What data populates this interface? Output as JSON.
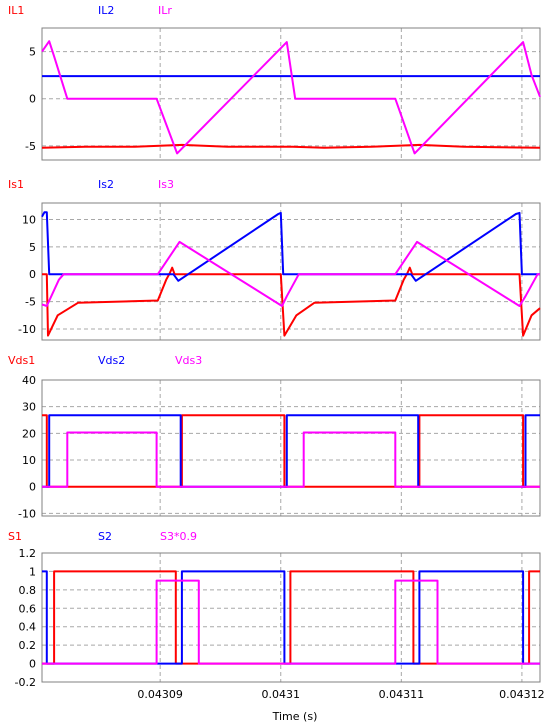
{
  "xaxis": {
    "label": "Time (s)",
    "range": [
      0.0430802,
      0.0431215
    ],
    "ticks": [
      0.04309,
      0.0431,
      0.04311,
      0.04312
    ],
    "tick_labels": [
      "0.04309",
      "0.0431",
      "0.04311",
      "0.04312"
    ]
  },
  "chart_data": [
    {
      "type": "line",
      "ylim": [
        -6.5,
        7.5
      ],
      "yticks": [
        -5,
        0,
        5
      ],
      "ytick_labels": [
        "-5",
        "0",
        "5"
      ],
      "grid": true,
      "legend_position": "top-left",
      "series": [
        {
          "name": "IL1",
          "color": "#ff0000",
          "points": [
            [
              0.0430802,
              -5.2
            ],
            [
              0.0430838,
              -5.1
            ],
            [
              0.0430879,
              -5.1
            ],
            [
              0.0430918,
              -4.9
            ],
            [
              0.0430956,
              -5.1
            ],
            [
              0.043101,
              -5.1
            ],
            [
              0.0431036,
              -5.2
            ],
            [
              0.0431075,
              -5.1
            ],
            [
              0.0431115,
              -4.9
            ],
            [
              0.0431152,
              -5.1
            ],
            [
              0.0431215,
              -5.2
            ]
          ]
        },
        {
          "name": "IL2",
          "color": "#0000ff",
          "points": [
            [
              0.0430802,
              2.4
            ],
            [
              0.0431215,
              2.4
            ]
          ]
        },
        {
          "name": "ILr",
          "color": "#ff00ff",
          "points": [
            [
              0.0430802,
              5.0
            ],
            [
              0.0430808,
              6.1
            ],
            [
              0.0430812,
              4.5
            ],
            [
              0.0430823,
              0
            ],
            [
              0.0430897,
              0
            ],
            [
              0.0430914,
              -5.8
            ],
            [
              0.0431005,
              6.0
            ],
            [
              0.0431012,
              0
            ],
            [
              0.0431095,
              0
            ],
            [
              0.0431111,
              -5.8
            ],
            [
              0.0431201,
              6.0
            ],
            [
              0.0431208,
              2.5
            ],
            [
              0.0431215,
              0.2
            ]
          ]
        }
      ]
    },
    {
      "type": "line",
      "ylim": [
        -12,
        13
      ],
      "yticks": [
        -10,
        -5,
        0,
        5,
        10
      ],
      "ytick_labels": [
        "-10",
        "-5",
        "0",
        "5",
        "10"
      ],
      "grid": true,
      "legend_position": "top-left",
      "series": [
        {
          "name": "Is1",
          "color": "#ff0000",
          "points": [
            [
              0.0430802,
              0
            ],
            [
              0.0430806,
              0
            ],
            [
              0.0430807,
              -11.2
            ],
            [
              0.0430815,
              -7.5
            ],
            [
              0.0430832,
              -5.2
            ],
            [
              0.0430898,
              -4.8
            ],
            [
              0.0430905,
              -1.0
            ],
            [
              0.0430908,
              0.2
            ],
            [
              0.043091,
              1.2
            ],
            [
              0.0430912,
              0
            ],
            [
              0.0431,
              0
            ],
            [
              0.0431003,
              -11.2
            ],
            [
              0.0431013,
              -7.5
            ],
            [
              0.0431028,
              -5.2
            ],
            [
              0.0431095,
              -4.8
            ],
            [
              0.0431102,
              -1.0
            ],
            [
              0.0431105,
              0.2
            ],
            [
              0.0431107,
              1.2
            ],
            [
              0.0431109,
              0
            ],
            [
              0.0431198,
              0
            ],
            [
              0.0431201,
              -11.2
            ],
            [
              0.0431208,
              -7.5
            ],
            [
              0.0431215,
              -6.2
            ]
          ]
        },
        {
          "name": "Is2",
          "color": "#0000ff",
          "points": [
            [
              0.0430802,
              10.5
            ],
            [
              0.0430804,
              11.3
            ],
            [
              0.0430806,
              11.3
            ],
            [
              0.0430808,
              0
            ],
            [
              0.0430911,
              0
            ],
            [
              0.0430915,
              -1.2
            ],
            [
              0.0430998,
              11.0
            ],
            [
              0.0431,
              11.2
            ],
            [
              0.0431002,
              0
            ],
            [
              0.0431108,
              0
            ],
            [
              0.0431112,
              -1.2
            ],
            [
              0.0431195,
              11.0
            ],
            [
              0.0431198,
              11.2
            ],
            [
              0.04312,
              0
            ],
            [
              0.0431215,
              0
            ]
          ]
        },
        {
          "name": "Is3",
          "color": "#ff00ff",
          "points": [
            [
              0.0430802,
              -5.5
            ],
            [
              0.0430806,
              -5.8
            ],
            [
              0.0430816,
              -1.0
            ],
            [
              0.043082,
              0
            ],
            [
              0.0430898,
              0
            ],
            [
              0.0430916,
              5.9
            ],
            [
              0.0431001,
              -5.8
            ],
            [
              0.0431005,
              -4.0
            ],
            [
              0.0431015,
              0
            ],
            [
              0.0431095,
              0
            ],
            [
              0.0431113,
              5.9
            ],
            [
              0.0431198,
              -5.8
            ],
            [
              0.0431203,
              -4.0
            ],
            [
              0.0431213,
              0
            ],
            [
              0.0431215,
              0
            ]
          ]
        }
      ]
    },
    {
      "type": "line",
      "ylim": [
        -11,
        40
      ],
      "yticks": [
        -10,
        0,
        10,
        20,
        30,
        40
      ],
      "ytick_labels": [
        "-10",
        "0",
        "10",
        "20",
        "30",
        "40"
      ],
      "grid": true,
      "legend_position": "top-left",
      "series": [
        {
          "name": "Vds1",
          "color": "#ff0000",
          "points": [
            [
              0.0430802,
              26.8
            ],
            [
              0.0430806,
              26.8
            ],
            [
              0.0430806,
              0
            ],
            [
              0.0430918,
              0
            ],
            [
              0.0430918,
              26.8
            ],
            [
              0.0431003,
              26.8
            ],
            [
              0.0431003,
              0
            ],
            [
              0.0431115,
              0
            ],
            [
              0.0431115,
              26.8
            ],
            [
              0.0431201,
              26.8
            ],
            [
              0.0431201,
              0
            ],
            [
              0.0431215,
              0
            ]
          ]
        },
        {
          "name": "Vds2",
          "color": "#0000ff",
          "points": [
            [
              0.0430802,
              0
            ],
            [
              0.0430808,
              0
            ],
            [
              0.0430808,
              26.8
            ],
            [
              0.0430917,
              26.8
            ],
            [
              0.0430917,
              0
            ],
            [
              0.0431005,
              0
            ],
            [
              0.0431005,
              26.8
            ],
            [
              0.0431114,
              26.8
            ],
            [
              0.0431114,
              0
            ],
            [
              0.0431203,
              0
            ],
            [
              0.0431203,
              26.8
            ],
            [
              0.0431215,
              26.8
            ]
          ]
        },
        {
          "name": "Vds3",
          "color": "#ff00ff",
          "points": [
            [
              0.0430802,
              0
            ],
            [
              0.0430823,
              0
            ],
            [
              0.0430823,
              20.3
            ],
            [
              0.0430897,
              20.3
            ],
            [
              0.0430897,
              0
            ],
            [
              0.0431019,
              0
            ],
            [
              0.0431019,
              20.3
            ],
            [
              0.0431095,
              20.3
            ],
            [
              0.0431095,
              0
            ],
            [
              0.0431215,
              0
            ]
          ]
        }
      ]
    },
    {
      "type": "line",
      "ylim": [
        -0.2,
        1.2
      ],
      "yticks": [
        -0.2,
        0,
        0.2,
        0.4,
        0.6,
        0.8,
        1,
        1.2
      ],
      "ytick_labels": [
        "-0.2",
        "0",
        "0.2",
        "0.4",
        "0.6",
        "0.8",
        "1",
        "1.2"
      ],
      "grid": true,
      "legend_position": "top-left",
      "series": [
        {
          "name": "S1",
          "color": "#ff0000",
          "points": [
            [
              0.0430802,
              0
            ],
            [
              0.0430812,
              0
            ],
            [
              0.0430812,
              1
            ],
            [
              0.0430913,
              1
            ],
            [
              0.0430913,
              0
            ],
            [
              0.0431008,
              0
            ],
            [
              0.0431008,
              1
            ],
            [
              0.043111,
              1
            ],
            [
              0.043111,
              0
            ],
            [
              0.0431206,
              0
            ],
            [
              0.0431206,
              1
            ],
            [
              0.0431215,
              1
            ]
          ]
        },
        {
          "name": "S2",
          "color": "#0000ff",
          "points": [
            [
              0.0430802,
              1
            ],
            [
              0.0430806,
              1
            ],
            [
              0.0430806,
              0
            ],
            [
              0.0430918,
              0
            ],
            [
              0.0430918,
              1
            ],
            [
              0.0431003,
              1
            ],
            [
              0.0431003,
              0
            ],
            [
              0.0431115,
              0
            ],
            [
              0.0431115,
              1
            ],
            [
              0.0431201,
              1
            ],
            [
              0.0431201,
              0
            ],
            [
              0.0431215,
              0
            ]
          ]
        },
        {
          "name": "S3*0.9",
          "color": "#ff00ff",
          "points": [
            [
              0.0430802,
              0
            ],
            [
              0.0430897,
              0
            ],
            [
              0.0430897,
              0.9
            ],
            [
              0.0430932,
              0.9
            ],
            [
              0.0430932,
              0
            ],
            [
              0.0431095,
              0
            ],
            [
              0.0431095,
              0.9
            ],
            [
              0.043113,
              0.9
            ],
            [
              0.043113,
              0
            ],
            [
              0.0431215,
              0
            ]
          ]
        }
      ]
    }
  ]
}
